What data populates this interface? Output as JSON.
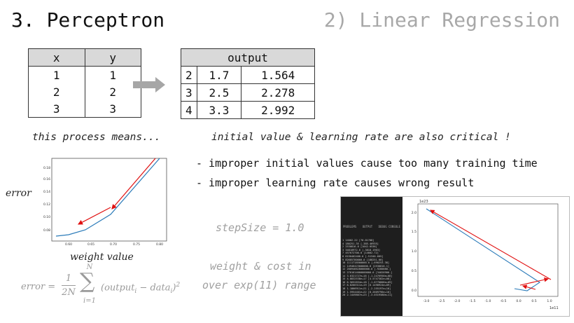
{
  "header": {
    "title": "3. Perceptron",
    "subtitle": "2) Linear Regression"
  },
  "input_table": {
    "columns": [
      "x",
      "y"
    ],
    "rows": [
      [
        "1",
        "1"
      ],
      [
        "2",
        "2"
      ],
      [
        "3",
        "3"
      ]
    ]
  },
  "output_table": {
    "header": "output",
    "rows": [
      [
        "2",
        "1.7",
        "1.564"
      ],
      [
        "3",
        "2.5",
        "2.278"
      ],
      [
        "4",
        "3.3",
        "2.992"
      ]
    ]
  },
  "captions": {
    "left": "this process means...",
    "right": "initial value & learning rate are also critical !"
  },
  "bullets": [
    "- improper initial values cause too many training time",
    "- improper learning rate causes wrong result"
  ],
  "notes": {
    "step_size": "stepSize = 1.0",
    "weight_cost_line1": "weight & cost in",
    "weight_cost_line2": "over exp(11) range"
  },
  "error_plot": {
    "ylabel": "error",
    "xlabel": "weight value",
    "x_ticks": [
      "0.60",
      "0.65",
      "0.70",
      "0.75",
      "0.80"
    ],
    "y_ticks": [
      "0.08",
      "0.10",
      "0.12",
      "0.14",
      "0.16",
      "0.18"
    ]
  },
  "formula": {
    "lhs": "error =",
    "coef_num": "1",
    "coef_den": "2N",
    "sum_top": "N",
    "sum_bottom": "i=1",
    "body": "(output",
    "sub_i1": "i",
    "minus": " − data",
    "sub_i2": "i",
    "close": ")",
    "power": "2"
  },
  "screenshot": {
    "panel_tabs": [
      "PROBLEMS",
      "OUTPUT",
      "DEBUG CONSOLE"
    ],
    "terminal_lines": [
      "1 14002.22 [70.01708]",
      "4 180251.35 [-385.46935]",
      "2 2530816.8 [1042.0536]",
      "3 34810972.0 [-3818.1963]",
      "7 457672700.0 [14002.72]",
      "8 6150402400.0 [-51340.605]",
      "9 82685780000.0 [188251.00]",
      "10 1111718500000.0 [-690253.38]",
      "11 14946423000000.0 [2530816.1]",
      "12 200946628000000.0 [-9280080.]",
      "13 2701614000000000.0 [34026900.]",
      "14 3.6321727e+16 [-1.2476956e+08]",
      "15 4.8832538e+17 [4.5747382e+08]",
      "16 6.5652834e+18 [-1.6770806e+09]",
      "17 8.8266311e+19 [6.1498924e+09]",
      "18 1.1866911e+21 [-2.255197e+10]",
      "19 1.5954401e+22 [8.2609796e+10]",
      "20 2.1449807e+23 [-3.0319580e+11]"
    ],
    "plot_scale_top": "1e23",
    "plot_scale_bottom": "1e11",
    "x_ticks": [
      "-3.0",
      "-2.5",
      "-2.0",
      "-1.5",
      "-1.0",
      "-0.5",
      "0.0",
      "0.5",
      "1.0"
    ],
    "y_ticks": [
      "0.0",
      "0.5",
      "1.0",
      "1.5",
      "2.0"
    ]
  },
  "colors": {
    "arrow_grey": "#a6a6a6",
    "curve_blue": "#2b7bb9",
    "arrow_red": "#e01010"
  }
}
